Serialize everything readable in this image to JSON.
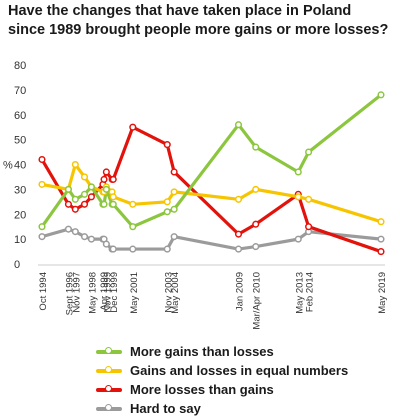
{
  "chart_data": {
    "type": "line",
    "title_lines": [
      "Have the changes that have taken place in Poland",
      "since 1989 brought people more gains or more losses?"
    ],
    "ylabel": "%",
    "ylim": [
      0,
      80
    ],
    "yticks": [
      0,
      10,
      20,
      30,
      40,
      50,
      60,
      70,
      80
    ],
    "grid": false,
    "legend_position": "bottom",
    "x": [
      "1994-10",
      "1996-09",
      "1997-03",
      "1997-11",
      "1998-05",
      "1999-03",
      "1999-04",
      "1999-06",
      "1999-11",
      "1999-12",
      "2001-05",
      "2003-11",
      "2004-05",
      "2009-01",
      "2010-04",
      "2013-05",
      "2014-02",
      "2019-05"
    ],
    "tick_labels": [
      {
        "x": "1994-10",
        "label": "Oct 1994"
      },
      {
        "x": "1996-09",
        "label": "Sept 1996"
      },
      {
        "x": "1997-03",
        "label": "Nov 1997"
      },
      {
        "x": "1998-05",
        "label": "May 1998"
      },
      {
        "x": "1999-03",
        "label": "Apr 1999"
      },
      {
        "x": "1999-06",
        "label": "Nov 1999"
      },
      {
        "x": "1999-12",
        "label": "Dec 1999"
      },
      {
        "x": "2001-05",
        "label": "May 2001"
      },
      {
        "x": "2003-11",
        "label": "Nov 2003"
      },
      {
        "x": "2004-05",
        "label": "May 2004"
      },
      {
        "x": "2009-01",
        "label": "Jan 2009"
      },
      {
        "x": "2010-04",
        "label": "Mar/Apr 2010"
      },
      {
        "x": "2013-05",
        "label": "May 2013"
      },
      {
        "x": "2014-02",
        "label": "Feb 2014"
      },
      {
        "x": "2019-05",
        "label": "May 2019"
      }
    ],
    "series": [
      {
        "name": "More gains than losses",
        "color": "#8cc63f",
        "values": [
          15,
          30,
          26,
          28,
          31,
          24,
          24,
          30,
          24,
          24,
          15,
          21,
          22,
          56,
          47,
          37,
          45,
          68
        ]
      },
      {
        "name": "Gains and losses in equal numbers",
        "color": "#f7c500",
        "values": [
          32,
          30,
          40,
          35,
          31,
          29,
          29,
          31,
          29,
          27,
          24,
          25,
          29,
          26,
          30,
          27,
          26,
          17
        ]
      },
      {
        "name": "More losses than gains",
        "color": "#e3120b",
        "values": [
          42,
          24,
          22,
          24,
          27,
          32,
          34,
          37,
          34,
          34,
          55,
          48,
          37,
          12,
          16,
          28,
          15,
          5
        ]
      },
      {
        "name": "Hard to say",
        "color": "#9b9b9b",
        "values": [
          11,
          14,
          13,
          11,
          10,
          10,
          10,
          8,
          6,
          6,
          6,
          6,
          11,
          6,
          7,
          10,
          13,
          10
        ]
      }
    ]
  }
}
